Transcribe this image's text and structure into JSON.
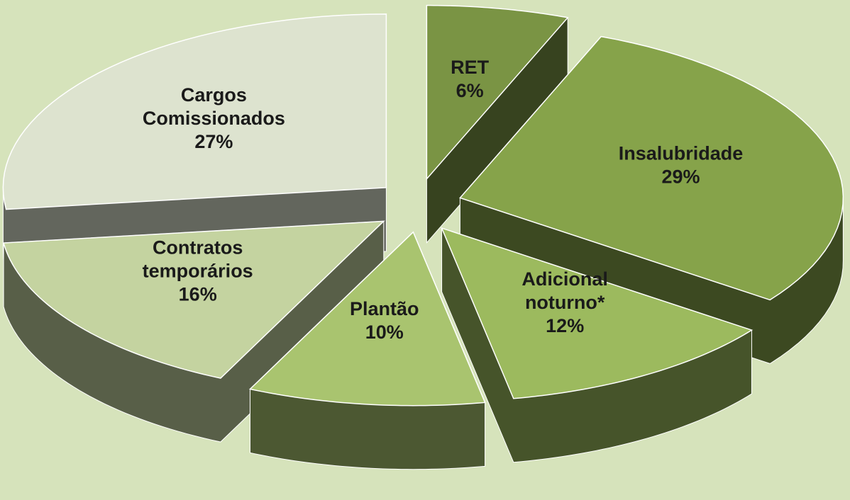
{
  "chart_data": {
    "type": "pie",
    "categories": [
      "RET",
      "Insalubridade",
      "Adicional noturno*",
      "Plantão",
      "Contratos temporários",
      "Cargos Comissionados"
    ],
    "values": [
      6,
      29,
      12,
      10,
      16,
      27
    ],
    "value_labels": [
      "6%",
      "29%",
      "12%",
      "10%",
      "16%",
      "27%"
    ],
    "colors": [
      "#7a9444",
      "#86a34a",
      "#9cba5e",
      "#a9c46f",
      "#c4d3a0",
      "#dde3cf"
    ]
  }
}
